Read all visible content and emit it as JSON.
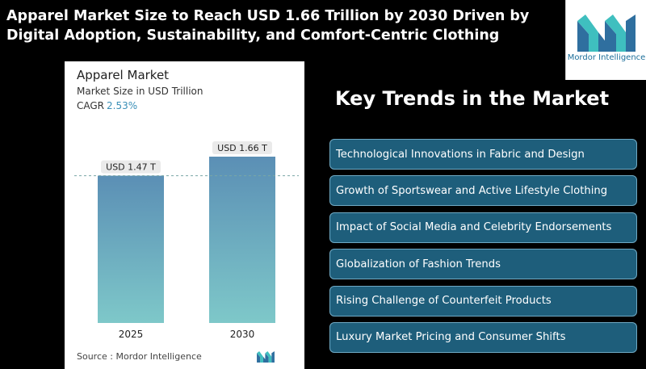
{
  "headline": "Apparel Market Size to Reach USD 1.66 Trillion by 2030 Driven by Digital Adoption, Sustainability, and Comfort-Centric Clothing",
  "logo": {
    "text": "Mordor Intelligence",
    "icon": "mordor-intelligence-logo-icon"
  },
  "chart_card": {
    "title": "Apparel Market",
    "subtitle": "Market Size in USD Trillion",
    "cagr_label": "CAGR",
    "cagr_value": "2.53%",
    "source": "Source :  Mordor Intelligence"
  },
  "chart_data": {
    "type": "bar",
    "title": "Apparel Market",
    "ylabel": "Market Size in USD Trillion",
    "categories": [
      "2025",
      "2030"
    ],
    "values": [
      1.47,
      1.66
    ],
    "data_labels": [
      "USD 1.47 T",
      "USD 1.66 T"
    ],
    "ylim": [
      0,
      1.66
    ],
    "grid": false,
    "reference_line": 1.47,
    "colors": {
      "bar_top": "#5b8fb5",
      "bar_bottom": "#7ec8c9",
      "label_bg": "#eaeaea",
      "reference_line": "#7aa6a6"
    }
  },
  "trends": {
    "title": "Key Trends in the Market",
    "items": [
      "Technological Innovations in Fabric and Design",
      "Growth of Sportswear and Active Lifestyle Clothing",
      "Impact of Social Media and Celebrity Endorsements",
      "Globalization of Fashion Trends",
      "Rising Challenge of Counterfeit Products",
      "Luxury Market Pricing and Consumer Shifts"
    ]
  },
  "colors": {
    "background": "#000000",
    "trend_fill": "#1e5e7b",
    "trend_border": "#6fa9c4",
    "brand_blue": "#1d6f9a",
    "brand_teal": "#3fbfbf"
  }
}
